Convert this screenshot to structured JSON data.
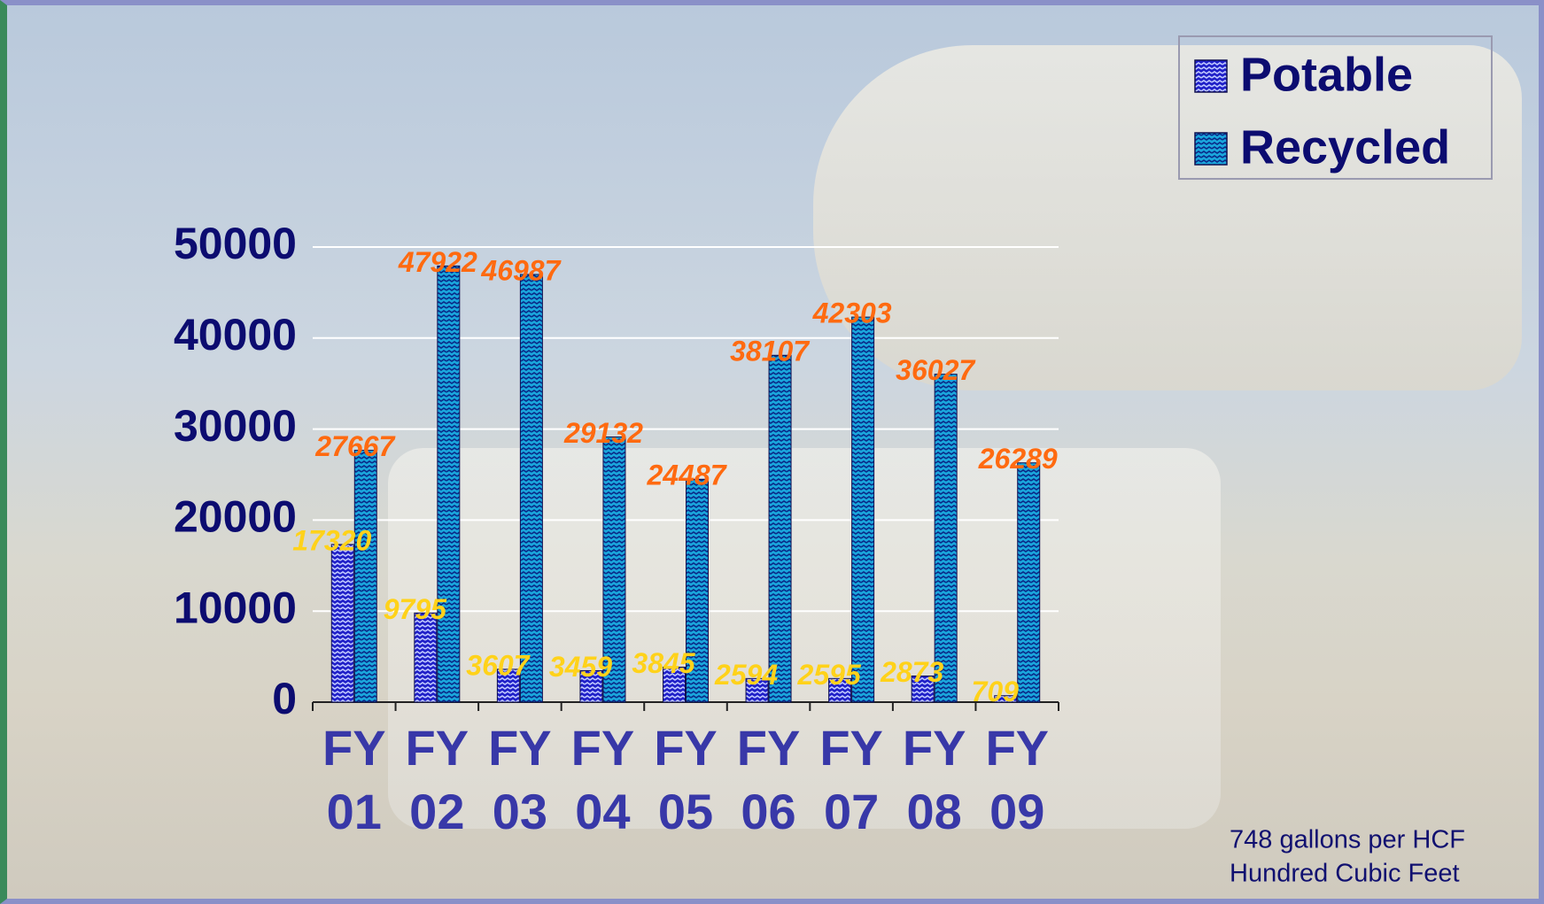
{
  "chart_data": {
    "type": "bar",
    "categories": [
      "FY 01",
      "FY 02",
      "FY 03",
      "FY 04",
      "FY 05",
      "FY 06",
      "FY 07",
      "FY 08",
      "FY 09"
    ],
    "series": [
      {
        "name": "Potable",
        "color": "#2020c8",
        "label_color": "#ffd21a",
        "values": [
          17320,
          9795,
          3607,
          3459,
          3845,
          2594,
          2595,
          2873,
          709
        ]
      },
      {
        "name": "Recycled",
        "color": "#1aa6dc",
        "label_color": "#ff6a10",
        "values": [
          27667,
          47922,
          46987,
          29132,
          24487,
          38107,
          42303,
          36027,
          26289
        ]
      }
    ],
    "ylim": [
      0,
      50000
    ],
    "yticks": [
      0,
      10000,
      20000,
      30000,
      40000,
      50000
    ],
    "grid": true,
    "legend": "top-right",
    "annotations": [
      "748 gallons per HCF",
      "Hundred Cubic Feet"
    ]
  }
}
